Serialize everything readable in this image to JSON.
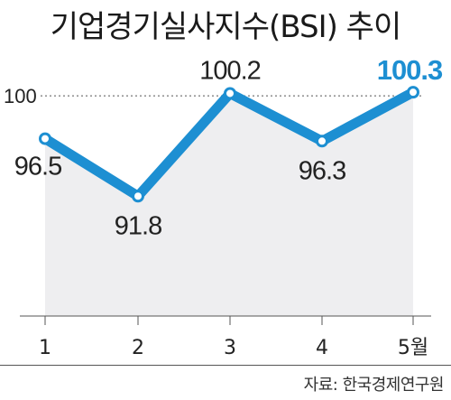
{
  "title": "기업경기실사지수(BSI) 추이",
  "source": "자료: 한국경제연구원",
  "chart_data": {
    "type": "line",
    "title": "기업경기실사지수(BSI) 추이",
    "categories": [
      "1",
      "2",
      "3",
      "4",
      "5월"
    ],
    "values": [
      96.5,
      91.8,
      100.2,
      96.3,
      100.3
    ],
    "value_labels": [
      "96.5",
      "91.8",
      "100.2",
      "96.3",
      "100.3"
    ],
    "reference_line": {
      "value": 100,
      "label": "100"
    },
    "ylim": [
      82,
      104
    ],
    "xlabel": "",
    "ylabel": "",
    "colors": {
      "line": "#1d8fd2",
      "area": "#eeeef0",
      "highlight_label": "#1d8fd2",
      "label": "#222222"
    },
    "highlight_index": 4
  }
}
